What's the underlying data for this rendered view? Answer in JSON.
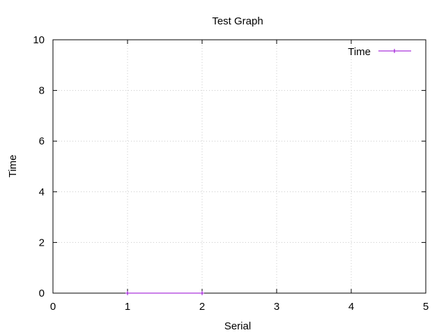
{
  "chart_data": {
    "type": "line",
    "title": "Test Graph",
    "xlabel": "Serial",
    "ylabel": "Time",
    "xlim": [
      0,
      5
    ],
    "ylim": [
      0,
      10
    ],
    "xticks": [
      0,
      1,
      2,
      3,
      4,
      5
    ],
    "yticks": [
      0,
      2,
      4,
      6,
      8,
      10
    ],
    "grid": true,
    "legend_position": "top-right",
    "series": [
      {
        "name": "Time",
        "color": "#9400d3",
        "marker": "plus",
        "x": [
          1,
          2
        ],
        "y": [
          0,
          0
        ]
      }
    ]
  }
}
